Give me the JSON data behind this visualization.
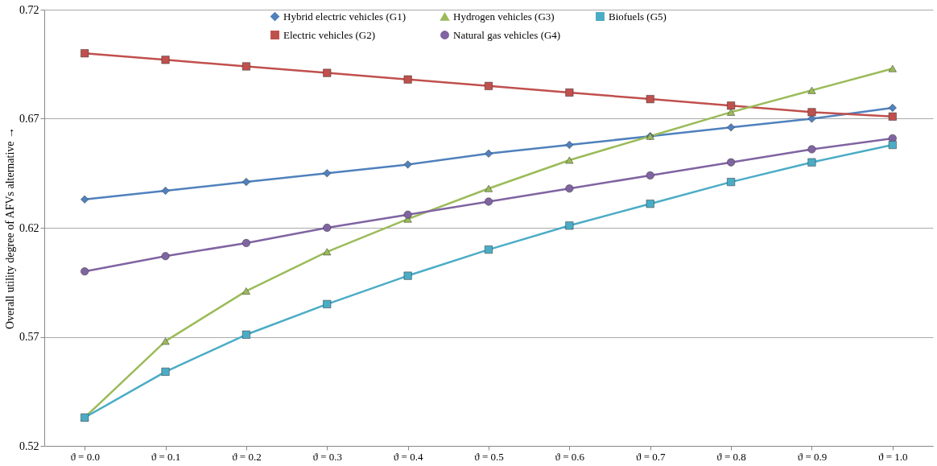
{
  "chart_data": {
    "type": "line",
    "ylabel": "Overall utility degree of AFVs alternative  →",
    "categories": [
      "ϑ = 0.0",
      "ϑ = 0.1",
      "ϑ = 0.2",
      "ϑ = 0.3",
      "ϑ = 0.4",
      "ϑ = 0.5",
      "ϑ = 0.6",
      "ϑ = 0.7",
      "ϑ = 0.8",
      "ϑ = 0.9",
      "ϑ = 1.0"
    ],
    "series": [
      {
        "name": "Hybrid electric vehicles (G1)",
        "color": "#4f81bd",
        "marker": "diamond",
        "values": [
          0.633,
          0.637,
          0.641,
          0.645,
          0.649,
          0.654,
          0.658,
          0.662,
          0.666,
          0.67,
          0.675
        ]
      },
      {
        "name": "Electric vehicles (G2)",
        "color": "#c0504d",
        "marker": "square",
        "values": [
          0.7,
          0.697,
          0.694,
          0.691,
          0.688,
          0.685,
          0.682,
          0.679,
          0.676,
          0.673,
          0.671
        ]
      },
      {
        "name": "Hydrogen vehicles (G3)",
        "color": "#9bbb59",
        "marker": "triangle",
        "values": [
          0.533,
          0.568,
          0.591,
          0.609,
          0.624,
          0.638,
          0.651,
          0.662,
          0.673,
          0.683,
          0.693
        ]
      },
      {
        "name": "Natural gas vehicles (G4)",
        "color": "#8064a2",
        "marker": "circle",
        "values": [
          0.6,
          0.607,
          0.613,
          0.62,
          0.626,
          0.632,
          0.638,
          0.644,
          0.65,
          0.656,
          0.661
        ]
      },
      {
        "name": "Biofuels (G5)",
        "color": "#4bacc6",
        "marker": "square",
        "values": [
          0.533,
          0.554,
          0.571,
          0.585,
          0.598,
          0.61,
          0.621,
          0.631,
          0.641,
          0.65,
          0.658
        ]
      }
    ],
    "ylim": [
      0.52,
      0.72
    ],
    "yticks": [
      {
        "value": 0.52,
        "label": "0.52"
      },
      {
        "value": 0.57,
        "label": "0.57"
      },
      {
        "value": 0.62,
        "label": "0.62"
      },
      {
        "value": 0.67,
        "label": "0.67"
      },
      {
        "value": 0.72,
        "label": "0.72"
      }
    ],
    "grid": "y",
    "legend": "top",
    "line_style": "solid"
  }
}
